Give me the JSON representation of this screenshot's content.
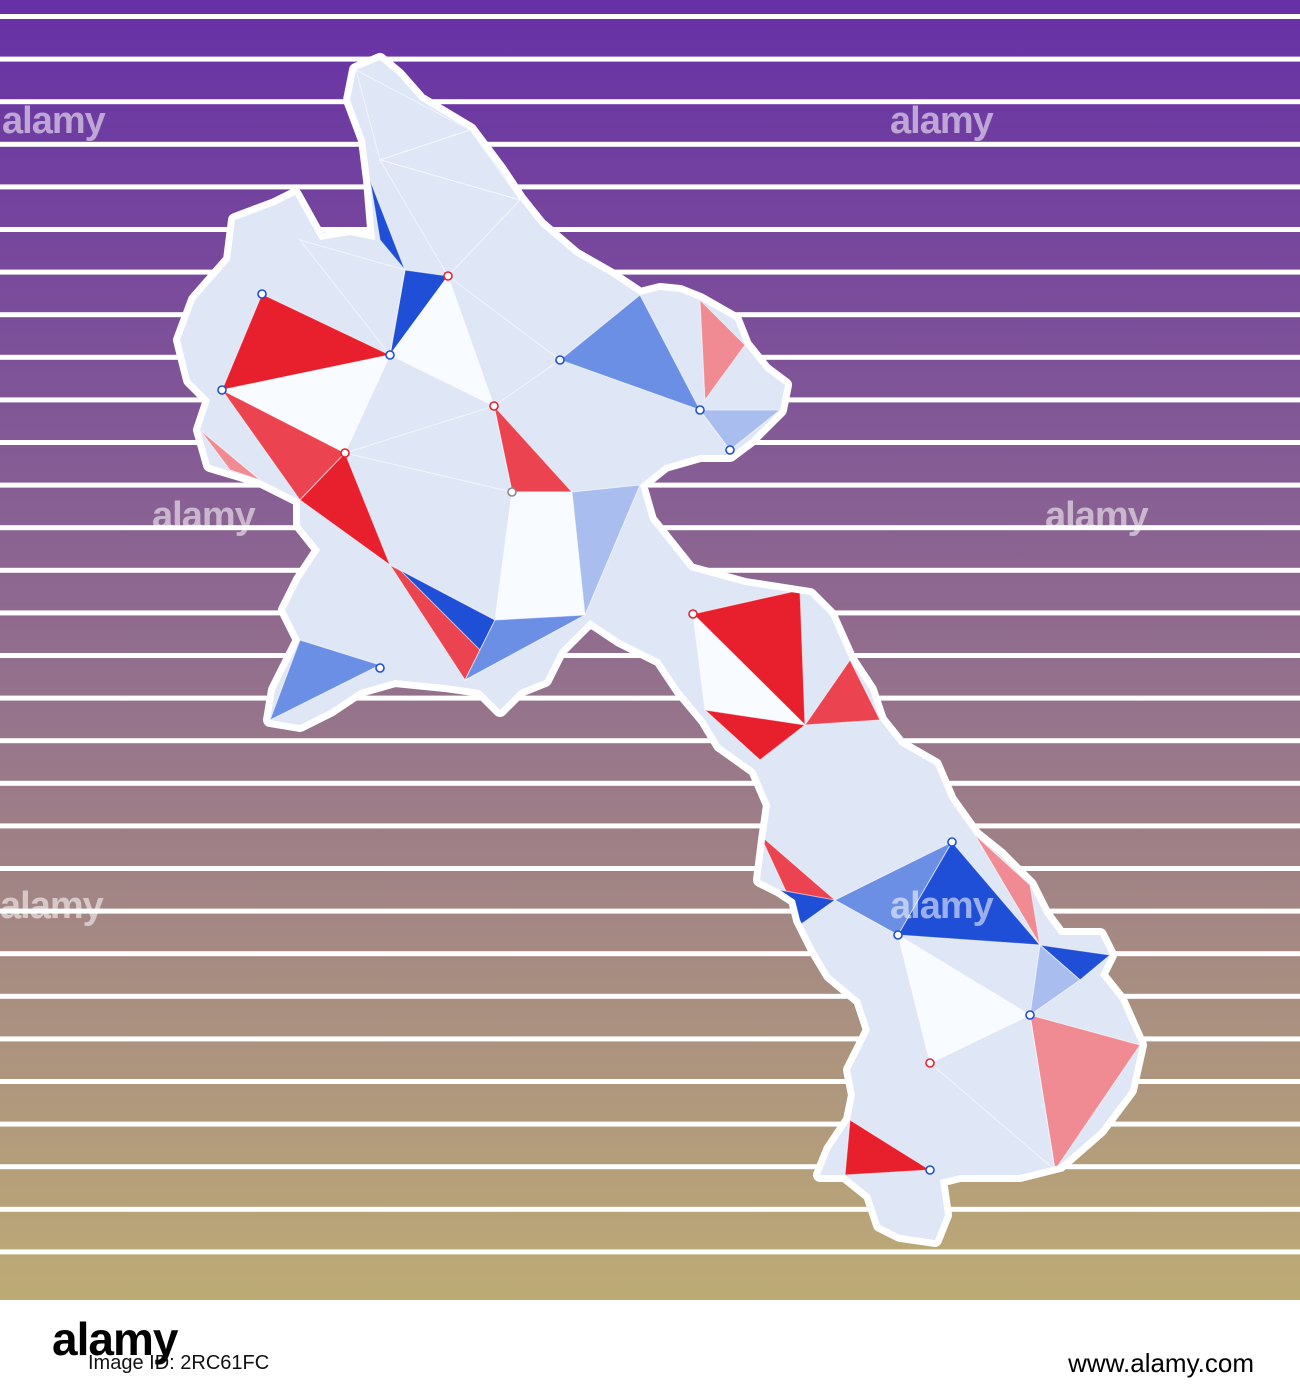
{
  "colors": {
    "gradient_top": "#6630a6",
    "gradient_bottom": "#bdab75",
    "stripe": "#ffffff",
    "outline": "#ffffff",
    "tri_light": "#dfe6f6",
    "tri_white": "#f8fbff",
    "red": "#e8202e",
    "red_mid": "#ec4350",
    "pink": "#f08b93",
    "blue": "#1f4fd6",
    "blue_mid": "#6b8fe5",
    "blue_light": "#a9bdee"
  },
  "stripes": {
    "count": 30
  },
  "watermark": {
    "text": "alamy"
  },
  "footer": {
    "logo": "alamy",
    "image_id": "Image ID: 2RC61FC",
    "url": "www.alamy.com"
  }
}
